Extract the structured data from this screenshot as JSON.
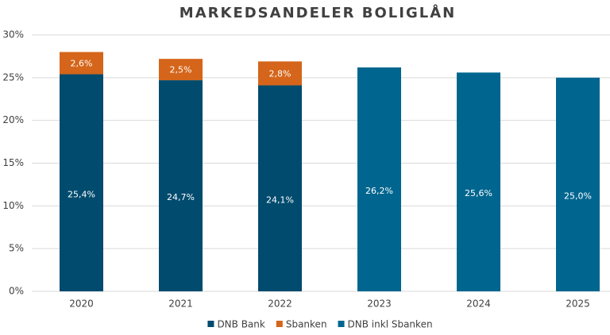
{
  "chart_data": {
    "type": "stacked_bar",
    "title": "MARKEDSANDELER BOLIGLÅN",
    "categories": [
      "2020",
      "2021",
      "2022",
      "2023",
      "2024",
      "2025"
    ],
    "series": [
      {
        "name": "DNB Bank",
        "color": "#004b6e",
        "values": [
          25.4,
          24.7,
          24.1,
          null,
          null,
          null
        ],
        "value_labels": [
          "25,4%",
          "24,7%",
          "24,1%",
          null,
          null,
          null
        ]
      },
      {
        "name": "Sbanken",
        "color": "#d5651a",
        "values": [
          2.6,
          2.5,
          2.8,
          null,
          null,
          null
        ],
        "value_labels": [
          "2,6%",
          "2,5%",
          "2,8%",
          null,
          null,
          null
        ]
      },
      {
        "name": "DNB inkl Sbanken",
        "color": "#00668f",
        "values": [
          null,
          null,
          null,
          26.2,
          25.6,
          25.0
        ],
        "value_labels": [
          null,
          null,
          null,
          "26,2%",
          "25,6%",
          "25,0%"
        ]
      }
    ],
    "ylim": [
      0,
      30
    ],
    "yticks": [
      {
        "value": 0,
        "label": "0%"
      },
      {
        "value": 5,
        "label": "5%"
      },
      {
        "value": 10,
        "label": "10%"
      },
      {
        "value": 15,
        "label": "15%"
      },
      {
        "value": 20,
        "label": "20%"
      },
      {
        "value": 25,
        "label": "25%"
      },
      {
        "value": 30,
        "label": "30%"
      }
    ],
    "grid": true,
    "legend": "bottom"
  }
}
